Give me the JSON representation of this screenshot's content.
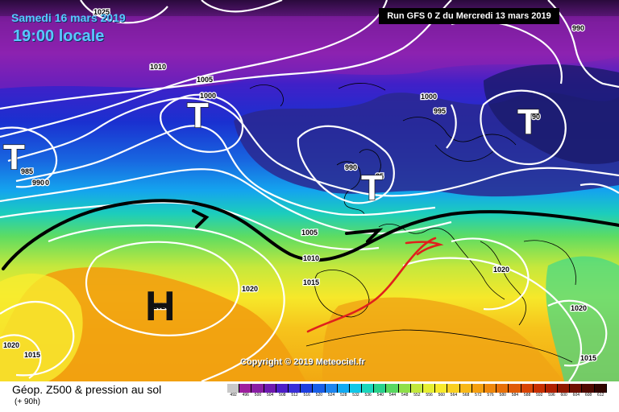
{
  "header": {
    "date": "Samedi 16 mars 2019",
    "time": "19:00 locale",
    "run": "Run GFS 0 Z du Mercredi 13 mars 2019"
  },
  "copyright": "Copyright © 2019 Meteociel.fr",
  "legend": {
    "title": "Géop. Z500 & pression au sol",
    "subtitle": "(+ 90h)",
    "values": [
      "492",
      "496",
      "500",
      "504",
      "508",
      "512",
      "516",
      "520",
      "524",
      "528",
      "532",
      "536",
      "540",
      "544",
      "548",
      "552",
      "556",
      "560",
      "564",
      "568",
      "572",
      "576",
      "580",
      "584",
      "588",
      "592",
      "596",
      "600",
      "604",
      "608",
      "612"
    ],
    "colors": [
      "#c8c8c8",
      "#9e1f9e",
      "#8a1ea4",
      "#6f1ab0",
      "#4d1ec8",
      "#3a2fd8",
      "#1f3fe0",
      "#1a5fe8",
      "#1e86f0",
      "#12aaf2",
      "#10c8e8",
      "#1ad6bc",
      "#28d28c",
      "#58d860",
      "#8ee04a",
      "#c2e83c",
      "#e6ef32",
      "#f8ea2c",
      "#f9d020",
      "#f8b818",
      "#f5a010",
      "#ef880c",
      "#e87008",
      "#e05a06",
      "#d84404",
      "#c83002",
      "#b02000",
      "#901800",
      "#701000",
      "#500a00",
      "#300500"
    ]
  },
  "pressure_labels": [
    "1025",
    "1010",
    "1005",
    "1000",
    "995",
    "990",
    "985",
    "1000",
    "990",
    "1005",
    "1010",
    "1015",
    "1020",
    "1025",
    "1020",
    "1015",
    "1020",
    "1020",
    "1015",
    "990",
    "990"
  ],
  "systems": {
    "low_symbol": "T",
    "high_symbol": "H",
    "low_value": "85",
    "low_value_2": "90"
  }
}
